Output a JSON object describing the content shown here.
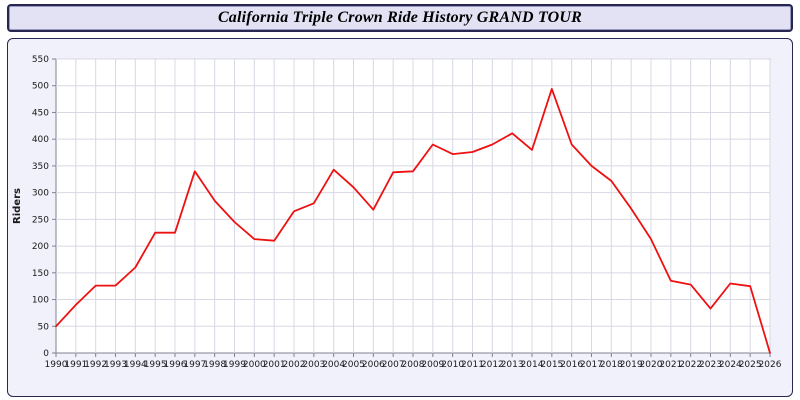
{
  "header": {
    "title": "California Triple Crown Ride History GRAND TOUR"
  },
  "chart_data": {
    "type": "line",
    "title": "California Triple Crown Ride History GRAND TOUR",
    "x": [
      1990,
      1991,
      1992,
      1993,
      1994,
      1995,
      1996,
      1997,
      1998,
      1999,
      2000,
      2001,
      2002,
      2003,
      2004,
      2005,
      2006,
      2007,
      2008,
      2009,
      2010,
      2011,
      2012,
      2013,
      2014,
      2015,
      2016,
      2017,
      2018,
      2019,
      2020,
      2021,
      2022,
      2023,
      2024,
      2025,
      2026
    ],
    "values": [
      50,
      90,
      126,
      126,
      160,
      225,
      225,
      340,
      285,
      245,
      213,
      210,
      265,
      280,
      343,
      310,
      268,
      338,
      340,
      390,
      372,
      376,
      390,
      411,
      380,
      494,
      390,
      350,
      322,
      270,
      213,
      135,
      128,
      83,
      130,
      125,
      0
    ],
    "xlabel": "",
    "ylabel": "Riders",
    "ylim": [
      0,
      550
    ],
    "ytick_step": 50,
    "grid": true,
    "legend_position": "none",
    "theme": {
      "line_color": "#ee1111",
      "plot_bg": "#ffffff",
      "panel_bg": "#f1f1fb",
      "grid_color": "#d8d8e4",
      "axis_color": "#808090",
      "text_color": "#1a1a1a",
      "border_color": "#26264f"
    }
  }
}
